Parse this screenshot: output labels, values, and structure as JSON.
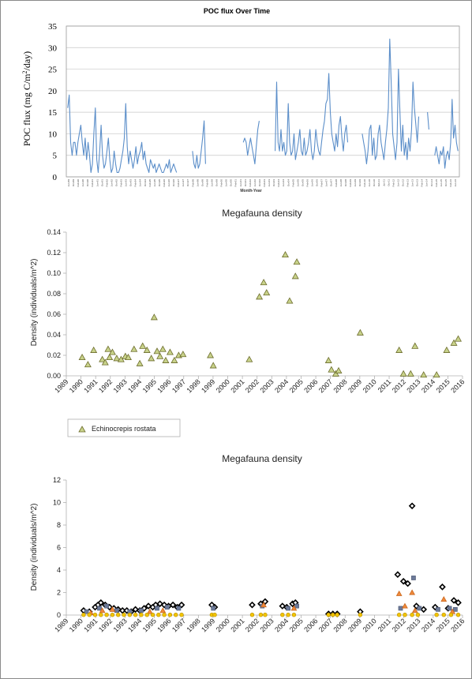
{
  "chart_data": [
    {
      "type": "line",
      "title": "POC flux Over Time",
      "xlabel": "Month-Year",
      "ylabel": "POC flux (mg C/m²/day)",
      "ylabel_parts": {
        "main": "POC flux (mg C/m",
        "sup": "2",
        "tail": "/day)"
      },
      "ylim": [
        0,
        35
      ],
      "yticks": [
        0,
        5,
        10,
        15,
        20,
        25,
        30,
        35
      ],
      "grid": true,
      "color": "#5b8ec9",
      "x_tick_labels": [
        "Jun-89",
        "Oct-89",
        "Feb-90",
        "Jun-90",
        "Oct-90",
        "Feb-91",
        "Jun-91",
        "Oct-91",
        "Feb-92",
        "Jun-92",
        "Oct-92",
        "Feb-93",
        "Jun-93",
        "Oct-93",
        "Feb-94",
        "Jun-94",
        "Oct-94",
        "Feb-95",
        "Jun-95",
        "Oct-95",
        "Feb-96",
        "Jun-96",
        "Oct-96",
        "Feb-97",
        "Jun-97",
        "Oct-97",
        "Feb-98",
        "Jun-98",
        "Oct-98",
        "Feb-99",
        "Jun-99",
        "Oct-99",
        "Feb-00",
        "Jun-00",
        "Oct-00",
        "Feb-01",
        "Jun-01",
        "Oct-01",
        "Feb-02",
        "Jun-02",
        "Oct-02",
        "Feb-03",
        "Jun-03",
        "Oct-03",
        "Feb-04",
        "Jun-04",
        "Oct-04",
        "Feb-05",
        "Jun-05",
        "Oct-05",
        "Feb-06",
        "Jun-06",
        "Oct-06",
        "Feb-07",
        "Jun-07",
        "Oct-07",
        "Feb-08",
        "Jun-08",
        "Oct-08",
        "Feb-09",
        "Jun-09",
        "Oct-09",
        "Feb-10",
        "Jun-10",
        "Oct-10",
        "Feb-11",
        "Jun-11",
        "Oct-11",
        "Feb-12",
        "Jun-12",
        "Oct-12",
        "Feb-13",
        "Jun-13",
        "Oct-13",
        "Feb-14",
        "Jun-14",
        "Oct-14",
        "Feb-15",
        "Jun-15",
        "Oct-15",
        "Feb-16",
        "Jun-16"
      ],
      "segments": [
        {
          "x": [
            1989.5,
            1989.6,
            1989.7,
            1989.8,
            1989.9,
            1990.0,
            1990.1,
            1990.2,
            1990.3,
            1990.4,
            1990.5,
            1990.6,
            1990.7,
            1990.8,
            1990.9,
            1991.0,
            1991.1,
            1991.2,
            1991.3,
            1991.4,
            1991.5,
            1991.6,
            1991.7,
            1991.8,
            1991.9,
            1992.0,
            1992.1,
            1992.2,
            1992.3,
            1992.4,
            1992.5,
            1992.6,
            1992.7,
            1992.8,
            1992.9,
            1993.0,
            1993.1,
            1993.2,
            1993.3,
            1993.4,
            1993.5,
            1993.6,
            1993.7,
            1993.8,
            1993.9,
            1994.0,
            1994.1,
            1994.2,
            1994.3,
            1994.4,
            1994.5,
            1994.6,
            1994.7,
            1994.8,
            1994.9,
            1995.0,
            1995.1,
            1995.2,
            1995.3,
            1995.4,
            1995.5,
            1995.6,
            1995.7,
            1995.8,
            1995.9,
            1996.0,
            1996.1,
            1996.2,
            1996.3,
            1996.4,
            1996.5,
            1996.6,
            1996.7,
            1996.8,
            1996.9,
            1997.0
          ],
          "y": [
            16,
            19,
            8,
            5,
            8,
            8,
            5,
            8,
            10,
            12,
            8,
            5,
            9,
            4,
            8,
            5,
            1,
            3,
            10,
            16,
            4,
            1,
            6,
            12,
            5,
            2,
            3,
            6,
            9,
            4,
            1,
            2,
            6,
            3,
            1,
            1,
            2,
            4,
            6,
            9,
            17,
            7,
            3,
            6,
            4,
            2,
            4,
            7,
            3,
            5,
            6,
            8,
            4,
            6,
            3,
            2,
            1,
            4,
            3,
            2,
            3,
            1,
            2,
            3,
            2,
            1,
            1,
            2,
            3,
            2,
            4,
            1,
            2,
            3,
            2,
            1
          ]
        },
        {
          "x": [
            1998.1,
            1998.2,
            1998.3,
            1998.4,
            1998.5,
            1998.6,
            1998.7,
            1998.8,
            1998.9,
            1999.0
          ],
          "y": [
            6,
            3,
            2,
            5,
            2,
            3,
            6,
            9,
            13,
            3
          ]
        },
        {
          "x": [
            2001.6,
            2001.7,
            2001.8,
            2001.9,
            2002.0,
            2002.1,
            2002.2,
            2002.3,
            2002.4,
            2002.5,
            2002.6,
            2002.7
          ],
          "y": [
            8,
            9,
            8,
            5,
            7,
            9,
            7,
            5,
            3,
            7,
            11,
            13
          ]
        },
        {
          "x": [
            2003.8,
            2003.9,
            2004.0,
            2004.1,
            2004.2,
            2004.3,
            2004.4,
            2004.5,
            2004.6,
            2004.7,
            2004.8,
            2004.9,
            2005.0,
            2005.1,
            2005.2,
            2005.3,
            2005.4,
            2005.5,
            2005.6,
            2005.7,
            2005.8,
            2005.9,
            2006.0,
            2006.1,
            2006.2,
            2006.3,
            2006.4,
            2006.5,
            2006.6,
            2006.7,
            2006.8,
            2006.9,
            2007.0,
            2007.1,
            2007.2,
            2007.3,
            2007.4,
            2007.5,
            2007.6,
            2007.7,
            2007.8,
            2007.9,
            2008.0,
            2008.1,
            2008.2,
            2008.3,
            2008.4,
            2008.5,
            2008.6,
            2008.7,
            2008.8
          ],
          "y": [
            6,
            22,
            8,
            6,
            11,
            6,
            8,
            5,
            6,
            17,
            8,
            5,
            6,
            10,
            4,
            6,
            8,
            11,
            6,
            5,
            9,
            5,
            6,
            8,
            11,
            6,
            4,
            6,
            11,
            8,
            6,
            5,
            8,
            11,
            13,
            17,
            18,
            24,
            15,
            10,
            8,
            6,
            10,
            7,
            12,
            14,
            9,
            6,
            10,
            12,
            8
          ]
        },
        {
          "x": [
            2009.8,
            2009.9,
            2010.0,
            2010.1,
            2010.2,
            2010.3,
            2010.4,
            2010.5,
            2010.6,
            2010.7,
            2010.8,
            2010.9,
            2011.0,
            2011.1,
            2011.2,
            2011.3,
            2011.4,
            2011.5,
            2011.6,
            2011.7,
            2011.8,
            2011.9,
            2012.0,
            2012.1,
            2012.2,
            2012.3,
            2012.4,
            2012.5,
            2012.6,
            2012.7,
            2012.8,
            2012.9,
            2013.0,
            2013.1,
            2013.2,
            2013.3,
            2013.4,
            2013.5,
            2013.6,
            2013.7
          ],
          "y": [
            10,
            8,
            6,
            3,
            6,
            11,
            12,
            5,
            9,
            4,
            5,
            10,
            12,
            8,
            6,
            4,
            8,
            11,
            16,
            32,
            22,
            10,
            7,
            4,
            8,
            25,
            15,
            6,
            12,
            5,
            8,
            4,
            9,
            6,
            11,
            22,
            16,
            12,
            8,
            14
          ]
        },
        {
          "x": [
            2014.3,
            2014.4
          ],
          "y": [
            15,
            11
          ]
        },
        {
          "x": [
            2014.8,
            2014.9,
            2015.0,
            2015.1,
            2015.2,
            2015.3,
            2015.4,
            2015.5,
            2015.6,
            2015.7,
            2015.8,
            2015.9,
            2016.0,
            2016.1,
            2016.2,
            2016.3,
            2016.4
          ],
          "y": [
            5,
            7,
            5,
            3,
            6,
            5,
            7,
            2,
            5,
            6,
            4,
            8,
            18,
            9,
            12,
            8,
            6
          ]
        }
      ]
    },
    {
      "type": "scatter",
      "title": "Megafauna density",
      "xlabel": "",
      "ylabel": "Density (individuals/m^2)",
      "ylim": [
        0,
        0.14
      ],
      "yticks": [
        "0.00",
        "0.02",
        "0.04",
        "0.06",
        "0.08",
        "0.10",
        "0.12",
        "0.14"
      ],
      "x_tick_labels": [
        "1989",
        "1990",
        "1991",
        "1992",
        "1993",
        "1994",
        "1995",
        "1996",
        "1997",
        "1998",
        "1999",
        "2000",
        "2001",
        "2002",
        "2003",
        "2004",
        "2005",
        "2006",
        "2007",
        "2008",
        "2009",
        "2010",
        "2011",
        "2012",
        "2013",
        "2014",
        "2015",
        "2016"
      ],
      "legend_position": "bottom-left",
      "series": [
        {
          "name": "Echinocrepis rostata",
          "marker": "triangle",
          "fill": "#c8d28a",
          "stroke": "#6b6b2b",
          "x": [
            1989.9,
            1990.3,
            1990.7,
            1991.3,
            1991.5,
            1991.7,
            1991.8,
            1992.0,
            1992.3,
            1992.6,
            1992.9,
            1993.1,
            1993.5,
            1993.9,
            1994.1,
            1994.4,
            1994.7,
            1994.9,
            1995.1,
            1995.3,
            1995.5,
            1995.7,
            1996.0,
            1996.3,
            1996.6,
            1996.9,
            1998.8,
            1999.0,
            2001.5,
            2002.2,
            2002.5,
            2002.7,
            2004.0,
            2004.3,
            2004.7,
            2004.8,
            2007.0,
            2007.2,
            2007.5,
            2007.7,
            2009.2,
            2011.9,
            2012.2,
            2012.7,
            2013.0,
            2013.6,
            2014.5,
            2015.2,
            2015.7,
            2016.0
          ],
          "y": [
            0.018,
            0.011,
            0.025,
            0.016,
            0.013,
            0.026,
            0.018,
            0.023,
            0.017,
            0.016,
            0.019,
            0.018,
            0.026,
            0.012,
            0.029,
            0.025,
            0.017,
            0.057,
            0.024,
            0.019,
            0.026,
            0.015,
            0.023,
            0.015,
            0.02,
            0.021,
            0.02,
            0.01,
            0.016,
            0.077,
            0.091,
            0.081,
            0.118,
            0.073,
            0.097,
            0.111,
            0.015,
            0.006,
            0.002,
            0.005,
            0.042,
            0.025,
            0.002,
            0.002,
            0.029,
            0.001,
            0.001,
            0.025,
            0.032,
            0.036
          ]
        }
      ]
    },
    {
      "type": "scatter",
      "title": "Megafauna density",
      "xlabel": "",
      "ylabel": "Density (individuals/m^2)",
      "ylim": [
        0,
        12
      ],
      "yticks": [
        "0",
        "2",
        "4",
        "6",
        "8",
        "10",
        "12"
      ],
      "x_tick_labels": [
        "1989",
        "1990",
        "1991",
        "1992",
        "1993",
        "1994",
        "1995",
        "1996",
        "1997",
        "1998",
        "1999",
        "2000",
        "2001",
        "2002",
        "2003",
        "2004",
        "2005",
        "2006",
        "2007",
        "2008",
        "2009",
        "2010",
        "2011",
        "2012",
        "2013",
        "2014",
        "2015",
        "2016"
      ],
      "series": [
        {
          "marker": "diamond",
          "fill": "#ffffff",
          "stroke": "#000000",
          "x": [
            1990.0,
            1990.4,
            1990.8,
            1991.0,
            1991.2,
            1991.5,
            1991.8,
            1992.1,
            1992.4,
            1992.7,
            1993.0,
            1993.3,
            1993.6,
            1993.9,
            1994.2,
            1994.5,
            1994.8,
            1995.0,
            1995.3,
            1995.6,
            1995.9,
            1996.2,
            1996.5,
            1996.8,
            1998.9,
            1999.1,
            2001.7,
            2002.3,
            2002.6,
            2003.8,
            2004.1,
            2004.5,
            2004.7,
            2007.0,
            2007.3,
            2007.6,
            2009.2,
            2011.8,
            2012.2,
            2012.5,
            2012.8,
            2013.1,
            2013.6,
            2014.4,
            2014.9,
            2015.3,
            2015.7,
            2016.0
          ],
          "y": [
            0.4,
            0.3,
            0.7,
            0.9,
            1.1,
            0.9,
            0.7,
            0.6,
            0.5,
            0.4,
            0.4,
            0.3,
            0.5,
            0.4,
            0.6,
            0.8,
            0.7,
            0.9,
            1.0,
            0.9,
            0.8,
            0.9,
            0.7,
            0.9,
            0.9,
            0.7,
            0.9,
            1.0,
            1.2,
            0.8,
            0.7,
            1.0,
            1.1,
            0.1,
            0.1,
            0.1,
            0.3,
            3.6,
            3.0,
            2.8,
            9.7,
            0.8,
            0.5,
            0.7,
            2.5,
            0.6,
            1.3,
            1.1
          ]
        },
        {
          "marker": "square",
          "fill": "#6c7a99",
          "stroke": "#4a5670",
          "x": [
            1990.2,
            1991.1,
            1991.6,
            1992.3,
            1993.2,
            1994.0,
            1995.1,
            1995.8,
            1996.6,
            1999.0,
            2002.4,
            2004.2,
            2004.8,
            2012.0,
            2012.9,
            2013.3,
            2014.6,
            2015.4,
            2015.8
          ],
          "y": [
            0.3,
            0.6,
            0.8,
            0.4,
            0.3,
            0.4,
            0.6,
            0.7,
            0.6,
            0.6,
            0.8,
            0.6,
            0.8,
            0.6,
            3.3,
            0.6,
            0.5,
            0.6,
            0.5
          ]
        },
        {
          "marker": "triangle",
          "fill": "#f08a3c",
          "stroke": "#c9651b",
          "x": [
            1990.5,
            1991.3,
            1992.0,
            1994.6,
            1995.5,
            2002.5,
            2004.6,
            2011.9,
            2012.3,
            2012.8,
            2013.0,
            2015.0,
            2015.6
          ],
          "y": [
            0.2,
            0.4,
            0.5,
            0.3,
            0.4,
            0.9,
            0.6,
            1.9,
            0.8,
            2.0,
            0.4,
            1.4,
            0.3
          ]
        },
        {
          "marker": "circle",
          "fill": "#f3c400",
          "stroke": "#b58f00",
          "x": [
            1990.0,
            1990.4,
            1990.8,
            1991.2,
            1991.6,
            1992.0,
            1992.4,
            1992.8,
            1993.2,
            1993.6,
            1994.0,
            1994.4,
            1994.8,
            1995.2,
            1995.6,
            1996.0,
            1996.4,
            1996.8,
            1998.9,
            1999.1,
            2001.7,
            2002.3,
            2002.6,
            2003.8,
            2004.2,
            2004.6,
            2007.0,
            2007.3,
            2007.6,
            2009.2,
            2011.9,
            2012.3,
            2012.8,
            2013.2,
            2014.5,
            2015.0,
            2015.5,
            2016.0
          ],
          "y": [
            0.02,
            0.02,
            0.02,
            0.02,
            0.02,
            0.02,
            0.02,
            0.02,
            0.02,
            0.02,
            0.02,
            0.02,
            0.02,
            0.02,
            0.02,
            0.02,
            0.02,
            0.02,
            0.02,
            0.02,
            0.02,
            0.02,
            0.02,
            0.02,
            0.02,
            0.02,
            0.02,
            0.02,
            0.02,
            0.02,
            0.02,
            0.02,
            0.02,
            0.02,
            0.02,
            0.02,
            0.02,
            0.02
          ]
        }
      ]
    }
  ]
}
